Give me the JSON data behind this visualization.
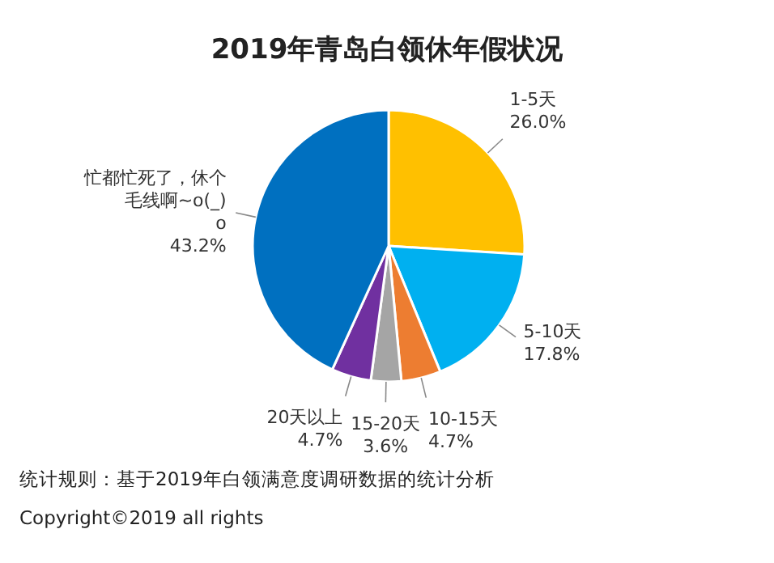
{
  "chart_data": {
    "type": "pie",
    "title": "2019年青岛白领休年假状况",
    "categories": [
      "1-5天",
      "5-10天",
      "10-15天",
      "15-20天",
      "20天以上",
      "忙都忙死了，休个毛线啊~o(_)o"
    ],
    "values": [
      26.0,
      17.8,
      4.7,
      3.6,
      4.7,
      43.2
    ],
    "value_labels": [
      "26.0%",
      "17.8%",
      "4.7%",
      "3.6%",
      "4.7%",
      "43.2%"
    ],
    "colors": [
      "#ffc000",
      "#00b0f0",
      "#ed7d31",
      "#a5a5a5",
      "#7030a0",
      "#0070c0"
    ],
    "annotations": [
      "统计规则：基于2019年白领满意度调研数据的统计分析",
      "Copyright©2019 all rights"
    ]
  }
}
